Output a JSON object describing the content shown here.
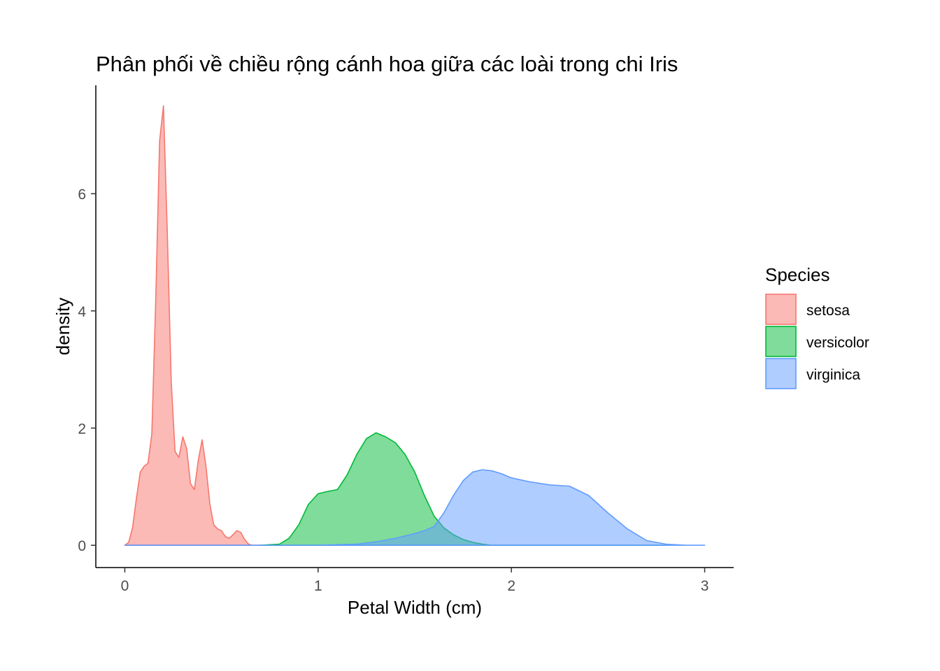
{
  "chart_data": {
    "type": "area",
    "title": "Phân phối về chiều rộng cánh hoa giữa các loài trong chi Iris",
    "xlabel": "Petal Width (cm)",
    "ylabel": "density",
    "xlim": [
      -0.15,
      3.15
    ],
    "ylim": [
      -0.38,
      7.85
    ],
    "x_ticks": [
      0,
      1,
      2,
      3
    ],
    "y_ticks": [
      0,
      2,
      4,
      6
    ],
    "grid": false,
    "legend": {
      "title": "Species",
      "position": "right"
    },
    "series": [
      {
        "name": "setosa",
        "fill": "#F8766D",
        "x": [
          0.0,
          0.02,
          0.04,
          0.06,
          0.08,
          0.1,
          0.12,
          0.14,
          0.16,
          0.18,
          0.2,
          0.22,
          0.24,
          0.26,
          0.28,
          0.3,
          0.32,
          0.34,
          0.36,
          0.38,
          0.4,
          0.42,
          0.44,
          0.46,
          0.48,
          0.5,
          0.52,
          0.54,
          0.56,
          0.58,
          0.6,
          0.62,
          0.64,
          0.66,
          0.68,
          0.7
        ],
        "values": [
          0.0,
          0.05,
          0.3,
          0.8,
          1.25,
          1.35,
          1.4,
          1.9,
          4.2,
          6.9,
          7.5,
          5.3,
          2.8,
          1.6,
          1.5,
          1.85,
          1.65,
          1.05,
          0.95,
          1.45,
          1.8,
          1.35,
          0.7,
          0.35,
          0.28,
          0.25,
          0.15,
          0.12,
          0.18,
          0.25,
          0.22,
          0.1,
          0.02,
          0.0,
          0.0,
          0.0
        ]
      },
      {
        "name": "versicolor",
        "fill": "#00BA38",
        "x": [
          0.7,
          0.8,
          0.85,
          0.9,
          0.95,
          1.0,
          1.05,
          1.1,
          1.15,
          1.2,
          1.25,
          1.3,
          1.35,
          1.4,
          1.45,
          1.5,
          1.55,
          1.6,
          1.65,
          1.7,
          1.75,
          1.8,
          1.85,
          1.9,
          2.0,
          2.1,
          2.2,
          2.4,
          2.6,
          2.8
        ],
        "values": [
          0.0,
          0.02,
          0.12,
          0.35,
          0.7,
          0.88,
          0.92,
          0.95,
          1.2,
          1.55,
          1.82,
          1.92,
          1.85,
          1.75,
          1.55,
          1.25,
          0.85,
          0.5,
          0.3,
          0.18,
          0.1,
          0.05,
          0.02,
          0.0,
          0.0,
          0.0,
          0.0,
          0.0,
          0.0,
          0.0
        ]
      },
      {
        "name": "virginica",
        "fill": "#619CFF",
        "x": [
          0.0,
          0.5,
          1.0,
          1.2,
          1.3,
          1.4,
          1.5,
          1.55,
          1.6,
          1.65,
          1.7,
          1.75,
          1.8,
          1.85,
          1.9,
          1.95,
          2.0,
          2.1,
          2.2,
          2.3,
          2.4,
          2.5,
          2.6,
          2.7,
          2.8,
          2.9,
          3.0
        ],
        "values": [
          0.0,
          0.0,
          0.0,
          0.02,
          0.06,
          0.12,
          0.2,
          0.25,
          0.32,
          0.55,
          0.85,
          1.1,
          1.25,
          1.29,
          1.27,
          1.22,
          1.15,
          1.08,
          1.03,
          1.01,
          0.85,
          0.55,
          0.28,
          0.08,
          0.02,
          0.0,
          0.0
        ]
      }
    ]
  }
}
